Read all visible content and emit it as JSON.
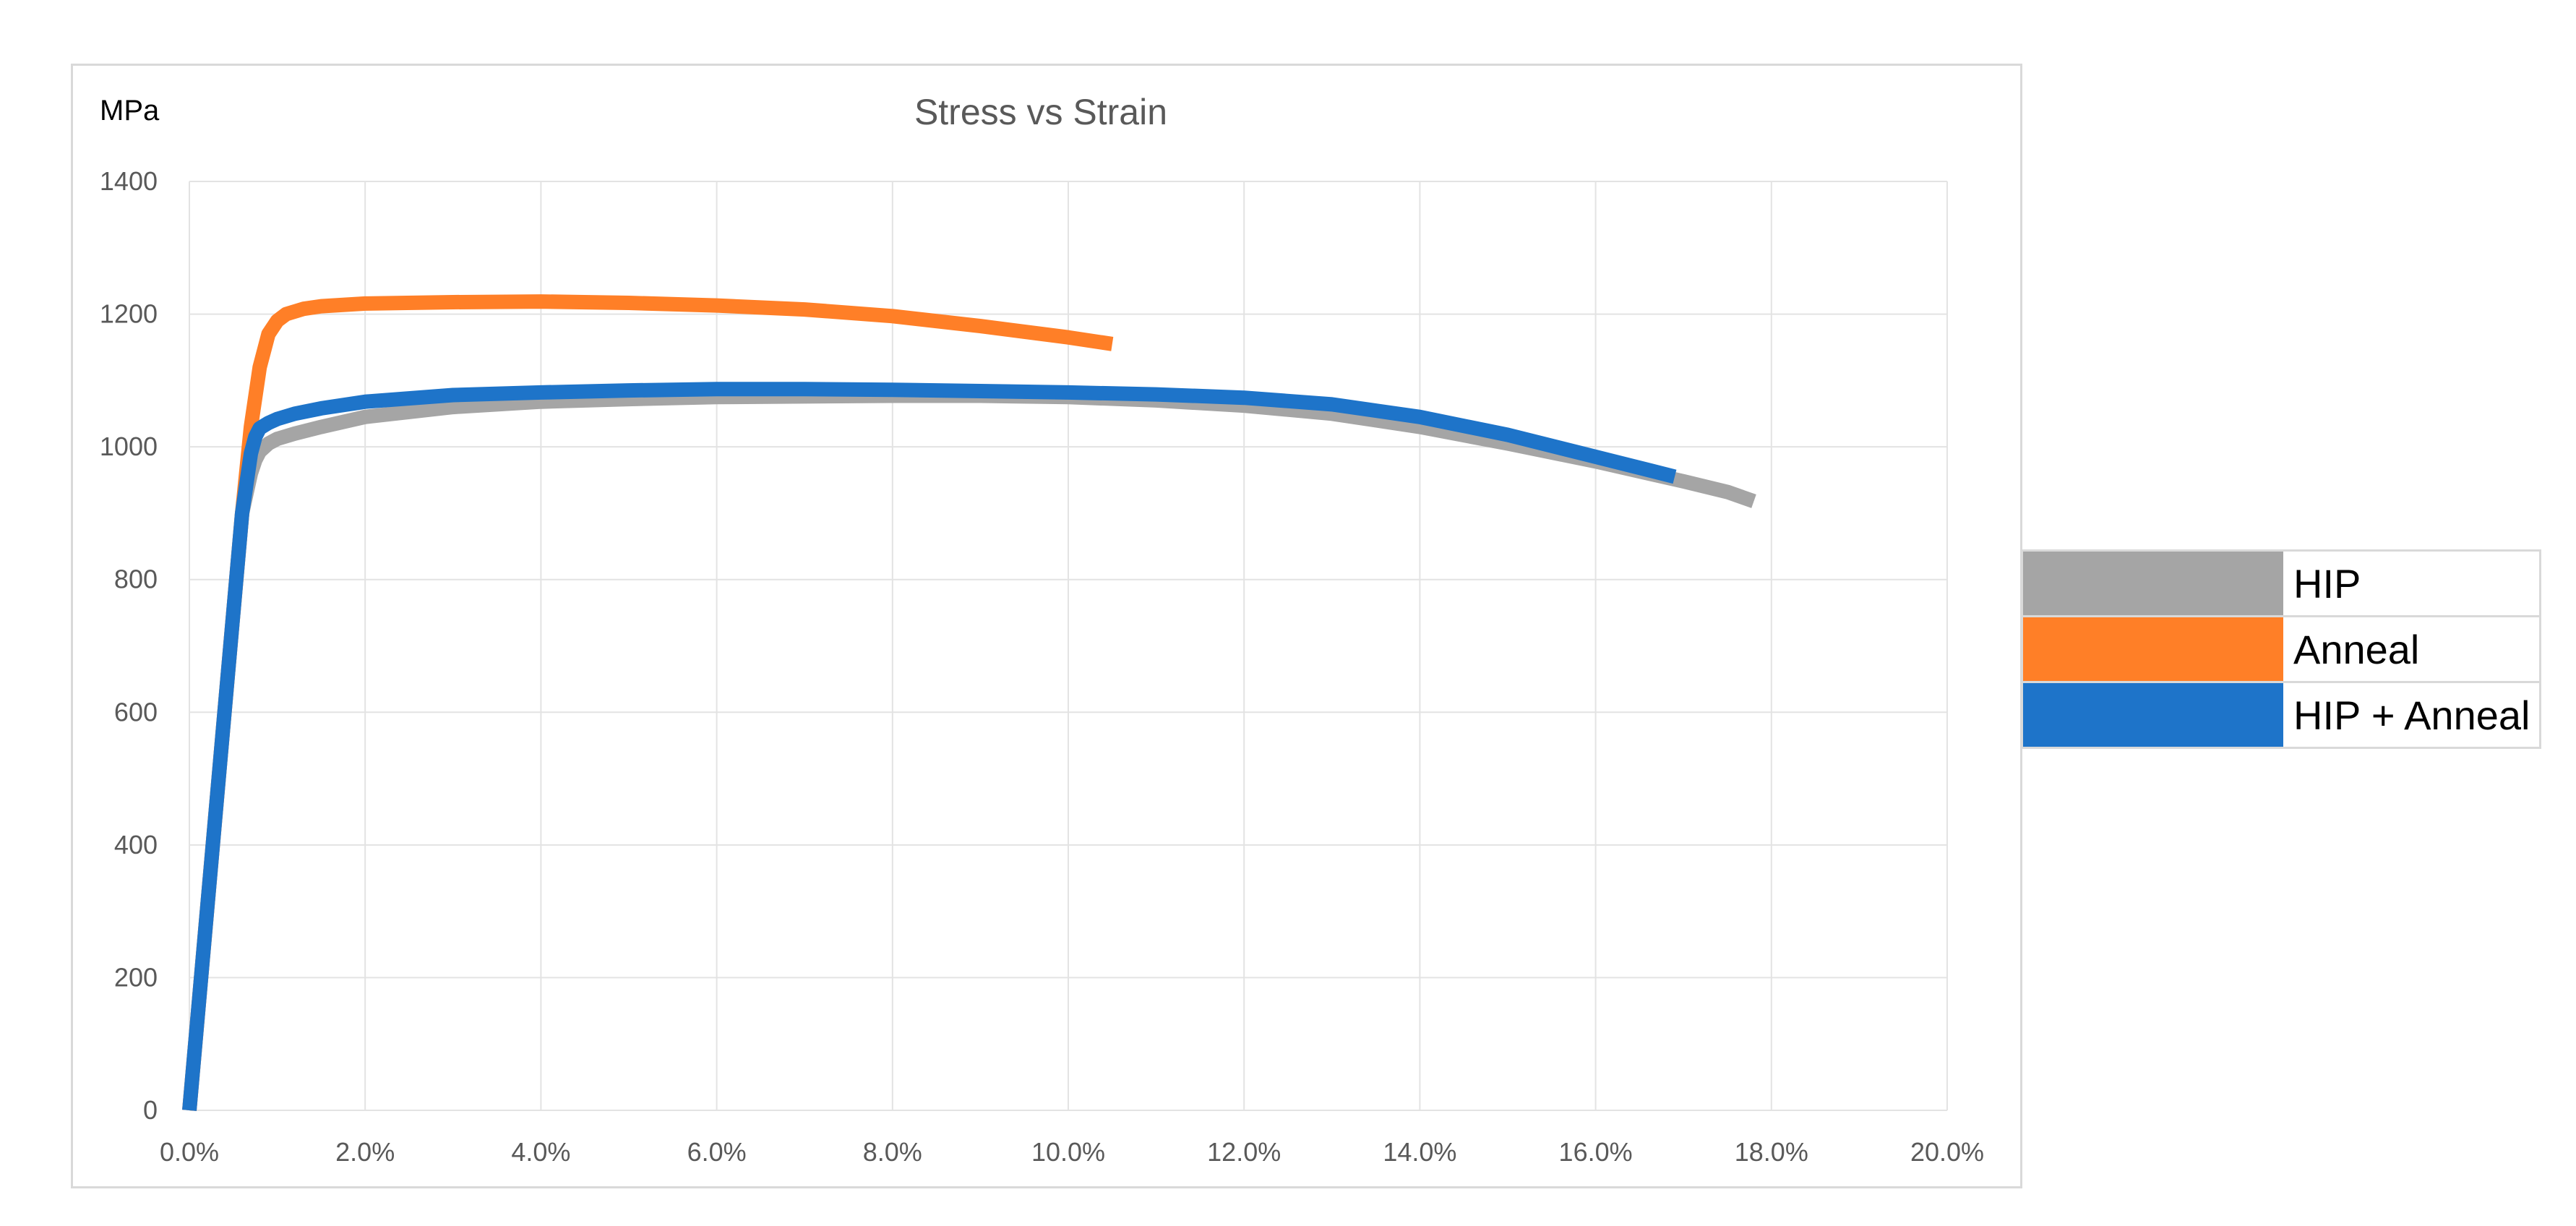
{
  "chart_data": {
    "type": "line",
    "title": "Stress vs Strain",
    "y_unit_label": "MPa",
    "xlabel": "",
    "ylabel": "MPa",
    "xlim": [
      0,
      0.2
    ],
    "ylim": [
      0,
      1400
    ],
    "x_ticks": [
      0,
      0.02,
      0.04,
      0.06,
      0.08,
      0.1,
      0.12,
      0.14,
      0.16,
      0.18,
      0.2
    ],
    "x_tick_labels": [
      "0.0%",
      "2.0%",
      "4.0%",
      "6.0%",
      "8.0%",
      "10.0%",
      "12.0%",
      "14.0%",
      "16.0%",
      "18.0%",
      "20.0%"
    ],
    "y_ticks": [
      0,
      200,
      400,
      600,
      800,
      1000,
      1200,
      1400
    ],
    "y_tick_labels": [
      "0",
      "200",
      "400",
      "600",
      "800",
      "1000",
      "1200",
      "1400"
    ],
    "grid": true,
    "legend_position": "right",
    "series": [
      {
        "name": "HIP",
        "color": "#a5a5a5",
        "x": [
          0,
          0.002,
          0.004,
          0.006,
          0.007,
          0.0075,
          0.008,
          0.009,
          0.01,
          0.012,
          0.015,
          0.02,
          0.03,
          0.04,
          0.05,
          0.06,
          0.07,
          0.08,
          0.09,
          0.1,
          0.11,
          0.12,
          0.13,
          0.14,
          0.15,
          0.16,
          0.17,
          0.175,
          0.178
        ],
        "y": [
          0,
          300,
          600,
          900,
          960,
          980,
          993,
          1005,
          1012,
          1020,
          1030,
          1045,
          1060,
          1068,
          1072,
          1075,
          1076,
          1077,
          1077,
          1075,
          1070,
          1062,
          1050,
          1030,
          1005,
          978,
          948,
          932,
          918
        ]
      },
      {
        "name": "Anneal",
        "color": "#ff7f27",
        "x": [
          0,
          0.002,
          0.004,
          0.006,
          0.007,
          0.008,
          0.009,
          0.01,
          0.011,
          0.013,
          0.015,
          0.02,
          0.03,
          0.04,
          0.05,
          0.06,
          0.07,
          0.08,
          0.09,
          0.1,
          0.105
        ],
        "y": [
          0,
          300,
          600,
          900,
          1030,
          1120,
          1170,
          1190,
          1200,
          1208,
          1212,
          1216,
          1218,
          1219,
          1217,
          1213,
          1207,
          1197,
          1182,
          1165,
          1155
        ]
      },
      {
        "name": "HIP + Anneal",
        "color": "#1e74c9",
        "x": [
          0,
          0.002,
          0.004,
          0.006,
          0.007,
          0.0075,
          0.008,
          0.009,
          0.01,
          0.012,
          0.015,
          0.02,
          0.03,
          0.04,
          0.05,
          0.06,
          0.07,
          0.08,
          0.09,
          0.1,
          0.11,
          0.12,
          0.13,
          0.14,
          0.15,
          0.16,
          0.169
        ],
        "y": [
          0,
          300,
          600,
          900,
          990,
          1015,
          1028,
          1036,
          1042,
          1050,
          1058,
          1068,
          1078,
          1082,
          1085,
          1087,
          1087,
          1086,
          1084,
          1082,
          1079,
          1074,
          1064,
          1045,
          1018,
          985,
          955
        ]
      }
    ]
  }
}
